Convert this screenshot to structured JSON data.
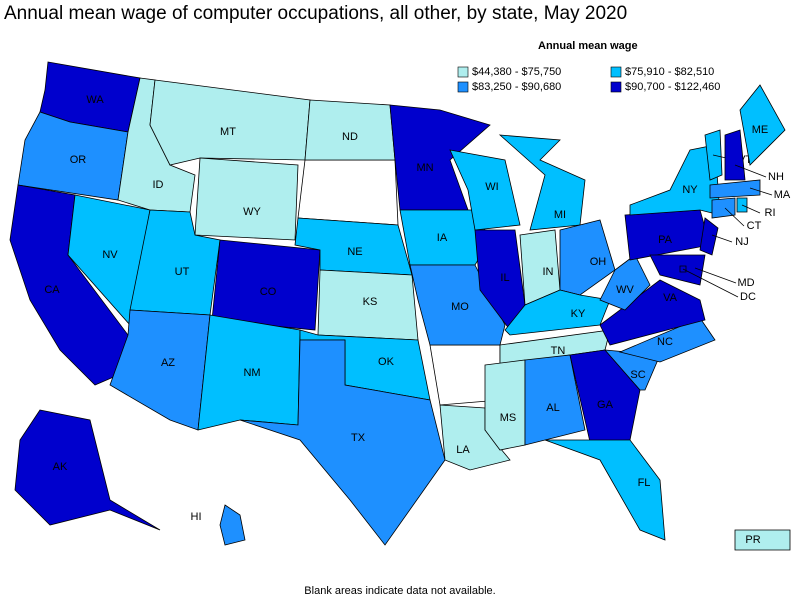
{
  "title": "Annual mean wage of computer occupations, all other, by state, May 2020",
  "legend": {
    "title": "Annual mean wage",
    "items": [
      {
        "label": "$44,380 - $75,750",
        "color": "#afeeee"
      },
      {
        "label": "$75,910 - $82,510",
        "color": "#00bfff"
      },
      {
        "label": "$83,250 - $90,680",
        "color": "#1e90ff"
      },
      {
        "label": "$90,700 - $122,460",
        "color": "#0000cd"
      }
    ]
  },
  "states": [
    {
      "label": "WA",
      "color": "#0000cd"
    },
    {
      "label": "OR",
      "color": "#1e90ff"
    },
    {
      "label": "CA",
      "color": "#0000cd"
    },
    {
      "label": "NV",
      "color": "#00bfff"
    },
    {
      "label": "ID",
      "color": "#afeeee"
    },
    {
      "label": "MT",
      "color": "#afeeee"
    },
    {
      "label": "WY",
      "color": "#afeeee"
    },
    {
      "label": "UT",
      "color": "#00bfff"
    },
    {
      "label": "AZ",
      "color": "#1e90ff"
    },
    {
      "label": "CO",
      "color": "#0000cd"
    },
    {
      "label": "NM",
      "color": "#00bfff"
    },
    {
      "label": "ND",
      "color": "#afeeee"
    },
    {
      "label": "NE",
      "color": "#00bfff"
    },
    {
      "label": "KS",
      "color": "#afeeee"
    },
    {
      "label": "OK",
      "color": "#00bfff"
    },
    {
      "label": "TX",
      "color": "#1e90ff"
    },
    {
      "label": "MN",
      "color": "#0000cd"
    },
    {
      "label": "IA",
      "color": "#00bfff"
    },
    {
      "label": "MO",
      "color": "#1e90ff"
    },
    {
      "label": "LA",
      "color": "#afeeee"
    },
    {
      "label": "WI",
      "color": "#00bfff"
    },
    {
      "label": "IL",
      "color": "#0000cd"
    },
    {
      "label": "MI",
      "color": "#00bfff"
    },
    {
      "label": "IN",
      "color": "#afeeee"
    },
    {
      "label": "OH",
      "color": "#1e90ff"
    },
    {
      "label": "KY",
      "color": "#00bfff"
    },
    {
      "label": "TN",
      "color": "#afeeee"
    },
    {
      "label": "MS",
      "color": "#afeeee"
    },
    {
      "label": "AL",
      "color": "#1e90ff"
    },
    {
      "label": "GA",
      "color": "#0000cd"
    },
    {
      "label": "FL",
      "color": "#00bfff"
    },
    {
      "label": "SC",
      "color": "#1e90ff"
    },
    {
      "label": "NC",
      "color": "#1e90ff"
    },
    {
      "label": "VA",
      "color": "#0000cd"
    },
    {
      "label": "WV",
      "color": "#1e90ff"
    },
    {
      "label": "PA",
      "color": "#0000cd"
    },
    {
      "label": "NY",
      "color": "#00bfff"
    },
    {
      "label": "NJ",
      "color": "#0000cd"
    },
    {
      "label": "MD",
      "color": "#0000cd"
    },
    {
      "label": "DC",
      "color": "#0000cd"
    },
    {
      "label": "VT",
      "color": "#00bfff"
    },
    {
      "label": "NH",
      "color": "#0000cd"
    },
    {
      "label": "ME",
      "color": "#00bfff"
    },
    {
      "label": "MA",
      "color": "#1e90ff"
    },
    {
      "label": "CT",
      "color": "#1e90ff"
    },
    {
      "label": "RI",
      "color": "#00bfff"
    },
    {
      "label": "AK",
      "color": "#0000cd"
    },
    {
      "label": "HI",
      "color": "#1e90ff"
    },
    {
      "label": "PR",
      "color": "#afeeee"
    }
  ],
  "footnote": "Blank areas indicate data not available."
}
